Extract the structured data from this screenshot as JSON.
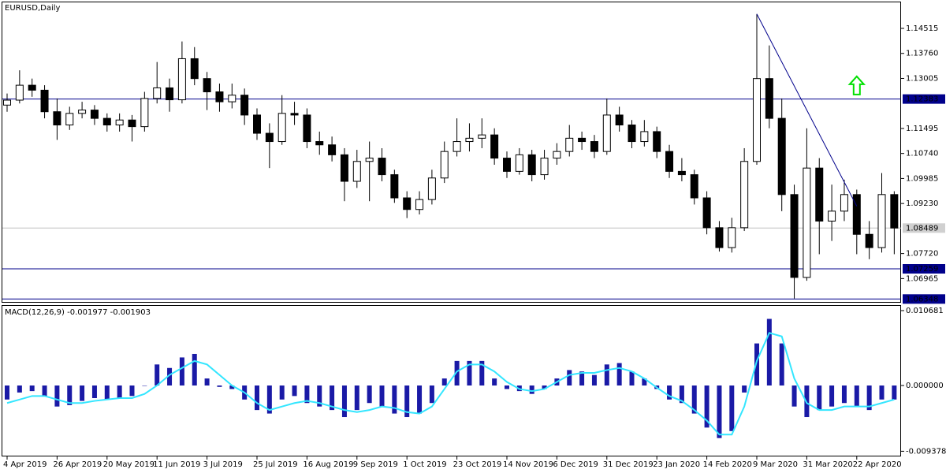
{
  "chart_data": [
    {
      "type": "candlestick",
      "title": "EURUSD,Daily",
      "categories": [
        "4 Apr 2019",
        null,
        null,
        null,
        "26 Apr 2019",
        null,
        null,
        null,
        "20 May 2019",
        null,
        null,
        null,
        "11 Jun 2019",
        null,
        null,
        null,
        "3 Jul 2019",
        null,
        null,
        null,
        "25 Jul 2019",
        null,
        null,
        null,
        "16 Aug 2019",
        null,
        null,
        null,
        "9 Sep 2019",
        null,
        null,
        null,
        "1 Oct 2019",
        null,
        null,
        null,
        "23 Oct 2019",
        null,
        null,
        null,
        "14 Nov 2019",
        null,
        null,
        null,
        "6 Dec 2019",
        null,
        null,
        null,
        "31 Dec 2019",
        null,
        null,
        null,
        "23 Jan 2020",
        null,
        null,
        null,
        "14 Feb 2020",
        null,
        null,
        null,
        "9 Mar 2020",
        null,
        null,
        null,
        "31 Mar 2020",
        null,
        null,
        null,
        "22 Apr 2020",
        null,
        null,
        null
      ],
      "open": [
        1.122,
        1.1235,
        1.128,
        1.1265,
        1.12,
        1.116,
        1.1195,
        1.1205,
        1.118,
        1.116,
        1.1175,
        1.1155,
        1.124,
        1.1272,
        1.1236,
        1.136,
        1.13,
        1.126,
        1.123,
        1.125,
        1.119,
        1.1135,
        1.111,
        1.1195,
        1.119,
        1.111,
        1.11,
        1.107,
        1.099,
        1.105,
        1.106,
        1.101,
        1.094,
        1.0905,
        1.0935,
        1.1,
        1.108,
        1.111,
        1.112,
        1.113,
        1.106,
        1.102,
        1.107,
        1.101,
        1.106,
        1.108,
        1.112,
        1.111,
        1.108,
        1.119,
        1.116,
        1.111,
        1.114,
        1.108,
        1.102,
        1.101,
        1.094,
        1.085,
        1.079,
        1.085,
        1.105,
        1.13,
        1.118,
        1.095,
        1.07,
        1.103,
        1.087,
        1.09,
        1.095,
        1.083,
        1.079,
        1.095
      ],
      "high": [
        1.1255,
        1.1325,
        1.13,
        1.128,
        1.124,
        1.1215,
        1.123,
        1.122,
        1.1195,
        1.1195,
        1.119,
        1.126,
        1.135,
        1.13,
        1.1412,
        1.1395,
        1.132,
        1.1285,
        1.1285,
        1.127,
        1.121,
        1.1165,
        1.125,
        1.123,
        1.121,
        1.114,
        1.1125,
        1.109,
        1.1085,
        1.111,
        1.109,
        1.1025,
        1.096,
        1.096,
        1.1025,
        1.111,
        1.118,
        1.1165,
        1.118,
        1.115,
        1.108,
        1.109,
        1.1085,
        1.1085,
        1.1105,
        1.116,
        1.114,
        1.113,
        1.124,
        1.1215,
        1.1175,
        1.1175,
        1.1155,
        1.11,
        1.106,
        1.1025,
        1.096,
        1.087,
        1.088,
        1.109,
        1.1495,
        1.14,
        1.124,
        1.098,
        1.115,
        1.106,
        1.098,
        1.0995,
        1.0965,
        1.087,
        1.1015,
        1.096
      ],
      "low": [
        1.12,
        1.1225,
        1.1245,
        1.118,
        1.1115,
        1.1145,
        1.118,
        1.116,
        1.114,
        1.114,
        1.111,
        1.114,
        1.1225,
        1.12,
        1.1225,
        1.128,
        1.1205,
        1.12,
        1.121,
        1.116,
        1.1115,
        1.103,
        1.11,
        1.116,
        1.109,
        1.107,
        1.105,
        1.093,
        1.097,
        1.093,
        1.099,
        1.0925,
        1.0879,
        1.089,
        1.092,
        1.0985,
        1.1065,
        1.108,
        1.109,
        1.104,
        1.1,
        1.101,
        1.099,
        1.0995,
        1.104,
        1.1065,
        1.1085,
        1.106,
        1.107,
        1.114,
        1.109,
        1.1095,
        1.106,
        1.1,
        1.099,
        1.092,
        1.083,
        1.0778,
        1.0775,
        1.084,
        1.104,
        1.115,
        1.09,
        1.0636,
        1.069,
        1.077,
        1.081,
        1.087,
        1.077,
        1.0755,
        1.0775,
        1.077
      ],
      "close": [
        1.1235,
        1.128,
        1.1265,
        1.12,
        1.116,
        1.1195,
        1.1205,
        1.118,
        1.116,
        1.1175,
        1.1155,
        1.124,
        1.1272,
        1.1236,
        1.136,
        1.13,
        1.126,
        1.123,
        1.125,
        1.119,
        1.1135,
        1.111,
        1.1195,
        1.119,
        1.111,
        1.11,
        1.107,
        1.099,
        1.105,
        1.106,
        1.101,
        1.094,
        1.0905,
        1.0935,
        1.1,
        1.108,
        1.111,
        1.112,
        1.113,
        1.106,
        1.102,
        1.107,
        1.101,
        1.106,
        1.108,
        1.112,
        1.111,
        1.108,
        1.119,
        1.116,
        1.111,
        1.114,
        1.108,
        1.102,
        1.101,
        1.094,
        1.085,
        1.079,
        1.085,
        1.105,
        1.13,
        1.118,
        1.095,
        1.07,
        1.103,
        1.087,
        1.09,
        1.095,
        1.083,
        1.079,
        1.095,
        1.0849
      ],
      "up_color": "#ffffff",
      "down_color": "#000000",
      "wick_color": "#000000",
      "ylim": [
        1.153,
        1.0626
      ],
      "yticks": [
        {
          "value": 1.14515,
          "label": "1.14515"
        },
        {
          "value": 1.1376,
          "label": "1.13760"
        },
        {
          "value": 1.13005,
          "label": "1.13005"
        },
        {
          "value": 1.11495,
          "label": "1.11495"
        },
        {
          "value": 1.1074,
          "label": "1.10740"
        },
        {
          "value": 1.09985,
          "label": "1.09985"
        },
        {
          "value": 1.0923,
          "label": "1.09230"
        },
        {
          "value": 1.0772,
          "label": "1.07720"
        },
        {
          "value": 1.06965,
          "label": "1.06965"
        }
      ],
      "hlines": [
        {
          "value": 1.12383,
          "label": "1.12383"
        },
        {
          "value": 1.07259,
          "label": "1.07259"
        },
        {
          "value": 1.06348,
          "label": "1.06348"
        }
      ],
      "hline_color": "#00008b",
      "current_price": {
        "value": 1.08489,
        "label": "1.08489"
      },
      "trendline": {
        "x": [
          "9 Mar 2020",
          "22 Apr 2020"
        ],
        "y": [
          1.1495,
          1.0915
        ],
        "color": "#00008b"
      },
      "arrow": {
        "x": "22 Apr 2020",
        "y": 1.1278,
        "color": "#00e000"
      }
    },
    {
      "type": "macd",
      "title": "MACD(12,26,9) -0.001977 -0.001903",
      "series": [
        {
          "kind": "bar",
          "color": "#1a1aa6",
          "values": [
            -0.002,
            -0.001,
            -0.0008,
            -0.0015,
            -0.003,
            -0.0028,
            -0.0022,
            -0.0018,
            -0.002,
            -0.0018,
            -0.0015,
            0.0,
            0.003,
            0.0025,
            0.004,
            0.0045,
            0.001,
            -0.0002,
            -0.0005,
            -0.002,
            -0.0035,
            -0.004,
            -0.002,
            -0.0015,
            -0.0025,
            -0.003,
            -0.0035,
            -0.0045,
            -0.0035,
            -0.0025,
            -0.003,
            -0.004,
            -0.0045,
            -0.004,
            -0.0025,
            0.001,
            0.0035,
            0.0035,
            0.0035,
            0.001,
            -0.0005,
            -0.0008,
            -0.0012,
            -0.0005,
            0.001,
            0.0022,
            0.002,
            0.0015,
            0.003,
            0.0032,
            0.002,
            0.001,
            -0.0005,
            -0.002,
            -0.0025,
            -0.004,
            -0.006,
            -0.0075,
            -0.0065,
            -0.001,
            0.006,
            0.0095,
            0.006,
            -0.003,
            -0.0045,
            -0.0035,
            -0.003,
            -0.0025,
            -0.003,
            -0.0035,
            -0.002,
            -0.002
          ]
        },
        {
          "kind": "line",
          "color": "#33e6ff",
          "values": [
            -0.0025,
            -0.002,
            -0.0015,
            -0.0015,
            -0.002,
            -0.0025,
            -0.0025,
            -0.0022,
            -0.002,
            -0.0018,
            -0.0018,
            -0.0012,
            0.0,
            0.0015,
            0.0025,
            0.0035,
            0.003,
            0.0015,
            0.0,
            -0.001,
            -0.0025,
            -0.0035,
            -0.003,
            -0.0025,
            -0.0022,
            -0.0025,
            -0.003,
            -0.0035,
            -0.0038,
            -0.0035,
            -0.003,
            -0.0032,
            -0.0038,
            -0.004,
            -0.003,
            -0.0005,
            0.002,
            0.003,
            0.003,
            0.002,
            0.0005,
            -0.0005,
            -0.0008,
            -0.0005,
            0.0005,
            0.0015,
            0.0018,
            0.0018,
            0.0022,
            0.0025,
            0.002,
            0.001,
            -0.0003,
            -0.0015,
            -0.0022,
            -0.0035,
            -0.005,
            -0.007,
            -0.007,
            -0.003,
            0.0035,
            0.0075,
            0.007,
            0.001,
            -0.0025,
            -0.0035,
            -0.0035,
            -0.003,
            -0.003,
            -0.003,
            -0.0025,
            -0.002
          ]
        }
      ],
      "ylim": [
        0.011356,
        -0.010007
      ],
      "yticks": [
        {
          "value": 0.010681,
          "label": "0.010681"
        },
        {
          "value": 0,
          "label": "0.000000"
        },
        {
          "value": -0.009378,
          "label": "-0.009378"
        }
      ]
    }
  ]
}
